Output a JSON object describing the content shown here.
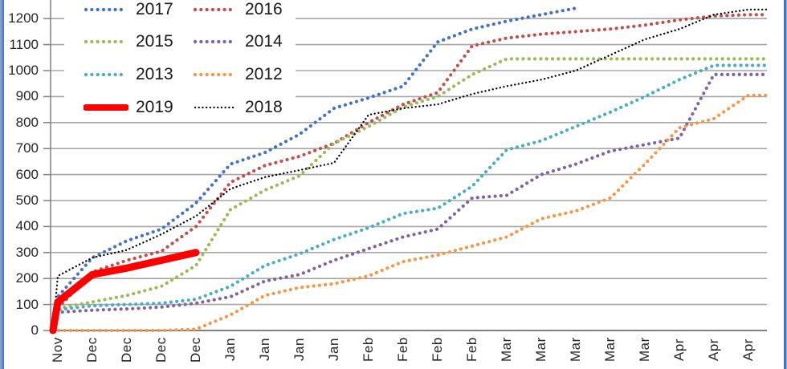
{
  "window": {
    "background": "#FFFFFF",
    "border_color": "#4472C4"
  },
  "chart_data": {
    "type": "line",
    "title": "",
    "xlabel": "",
    "ylabel": "",
    "x_tick_labels": [
      "",
      "Nov",
      "Dec",
      "Dec",
      "Dec",
      "Dec",
      "Jan",
      "Jan",
      "Jan",
      "Jan",
      "Feb",
      "Feb",
      "Feb",
      "Feb",
      "Mar",
      "Mar",
      "Mar",
      "Mar",
      "Mar",
      "Apr",
      "Apr",
      "Apr"
    ],
    "y_ticks": [
      0,
      100,
      200,
      300,
      400,
      500,
      600,
      700,
      800,
      900,
      1000,
      1100,
      1200
    ],
    "ylim": [
      0,
      1270
    ],
    "grid": true,
    "gridline_color": "#A6A6A6",
    "axis_color": "#808080",
    "label_color": "#262626",
    "legend": {
      "position": "top-left",
      "columns": 2,
      "items": [
        "2017",
        "2016",
        "2015",
        "2014",
        "2013",
        "2012",
        "2019",
        "2018"
      ]
    },
    "series": [
      {
        "name": "2017",
        "color": "#4472C4",
        "line_style": "dotted",
        "line_width": 4.2,
        "values": [
          0,
          130,
          280,
          345,
          390,
          490,
          640,
          685,
          755,
          855,
          895,
          940,
          1110,
          1160,
          1190,
          1215,
          1240,
          null,
          null,
          null,
          null,
          null
        ]
      },
      {
        "name": "2016",
        "color": "#C0504D",
        "line_style": "dotted",
        "line_width": 4.2,
        "values": [
          0,
          85,
          225,
          270,
          305,
          400,
          570,
          635,
          670,
          720,
          800,
          870,
          915,
          1095,
          1125,
          1140,
          1150,
          1160,
          1175,
          1195,
          1210,
          1215
        ]
      },
      {
        "name": "2015",
        "color": "#9BBB59",
        "line_style": "dotted",
        "line_width": 4.2,
        "values": [
          0,
          85,
          110,
          135,
          170,
          250,
          465,
          540,
          595,
          720,
          785,
          860,
          900,
          985,
          1045,
          1045,
          1045,
          1045,
          1045,
          1045,
          1045,
          1045
        ]
      },
      {
        "name": "2014",
        "color": "#8064A2",
        "line_style": "dotted",
        "line_width": 4.2,
        "values": [
          0,
          70,
          78,
          83,
          90,
          105,
          130,
          190,
          215,
          270,
          315,
          360,
          390,
          510,
          520,
          600,
          640,
          690,
          715,
          740,
          985,
          985
        ]
      },
      {
        "name": "2013",
        "color": "#4BACC6",
        "line_style": "dotted",
        "line_width": 4.2,
        "values": [
          0,
          80,
          95,
          100,
          105,
          120,
          170,
          250,
          295,
          350,
          395,
          450,
          470,
          555,
          695,
          730,
          785,
          840,
          900,
          965,
          1020,
          1020
        ]
      },
      {
        "name": "2012",
        "color": "#F79646",
        "line_style": "dotted",
        "line_width": 4.2,
        "values": [
          0,
          0,
          0,
          0,
          0,
          5,
          60,
          135,
          165,
          180,
          210,
          265,
          290,
          325,
          360,
          430,
          460,
          510,
          640,
          780,
          815,
          905
        ]
      },
      {
        "name": "2018",
        "color": "#000000",
        "line_style": "fine-dotted",
        "line_width": 2.3,
        "values": [
          0,
          210,
          280,
          310,
          370,
          440,
          545,
          590,
          617,
          645,
          830,
          855,
          870,
          910,
          940,
          965,
          1000,
          1060,
          1120,
          1160,
          1215,
          1235
        ]
      },
      {
        "name": "2019",
        "color": "#FF0000",
        "line_style": "solid",
        "line_width": 9,
        "values": [
          0,
          110,
          215,
          240,
          270,
          300,
          null,
          null,
          null,
          null,
          null,
          null,
          null,
          null,
          null,
          null,
          null,
          null,
          null,
          null,
          null,
          null
        ]
      }
    ]
  }
}
